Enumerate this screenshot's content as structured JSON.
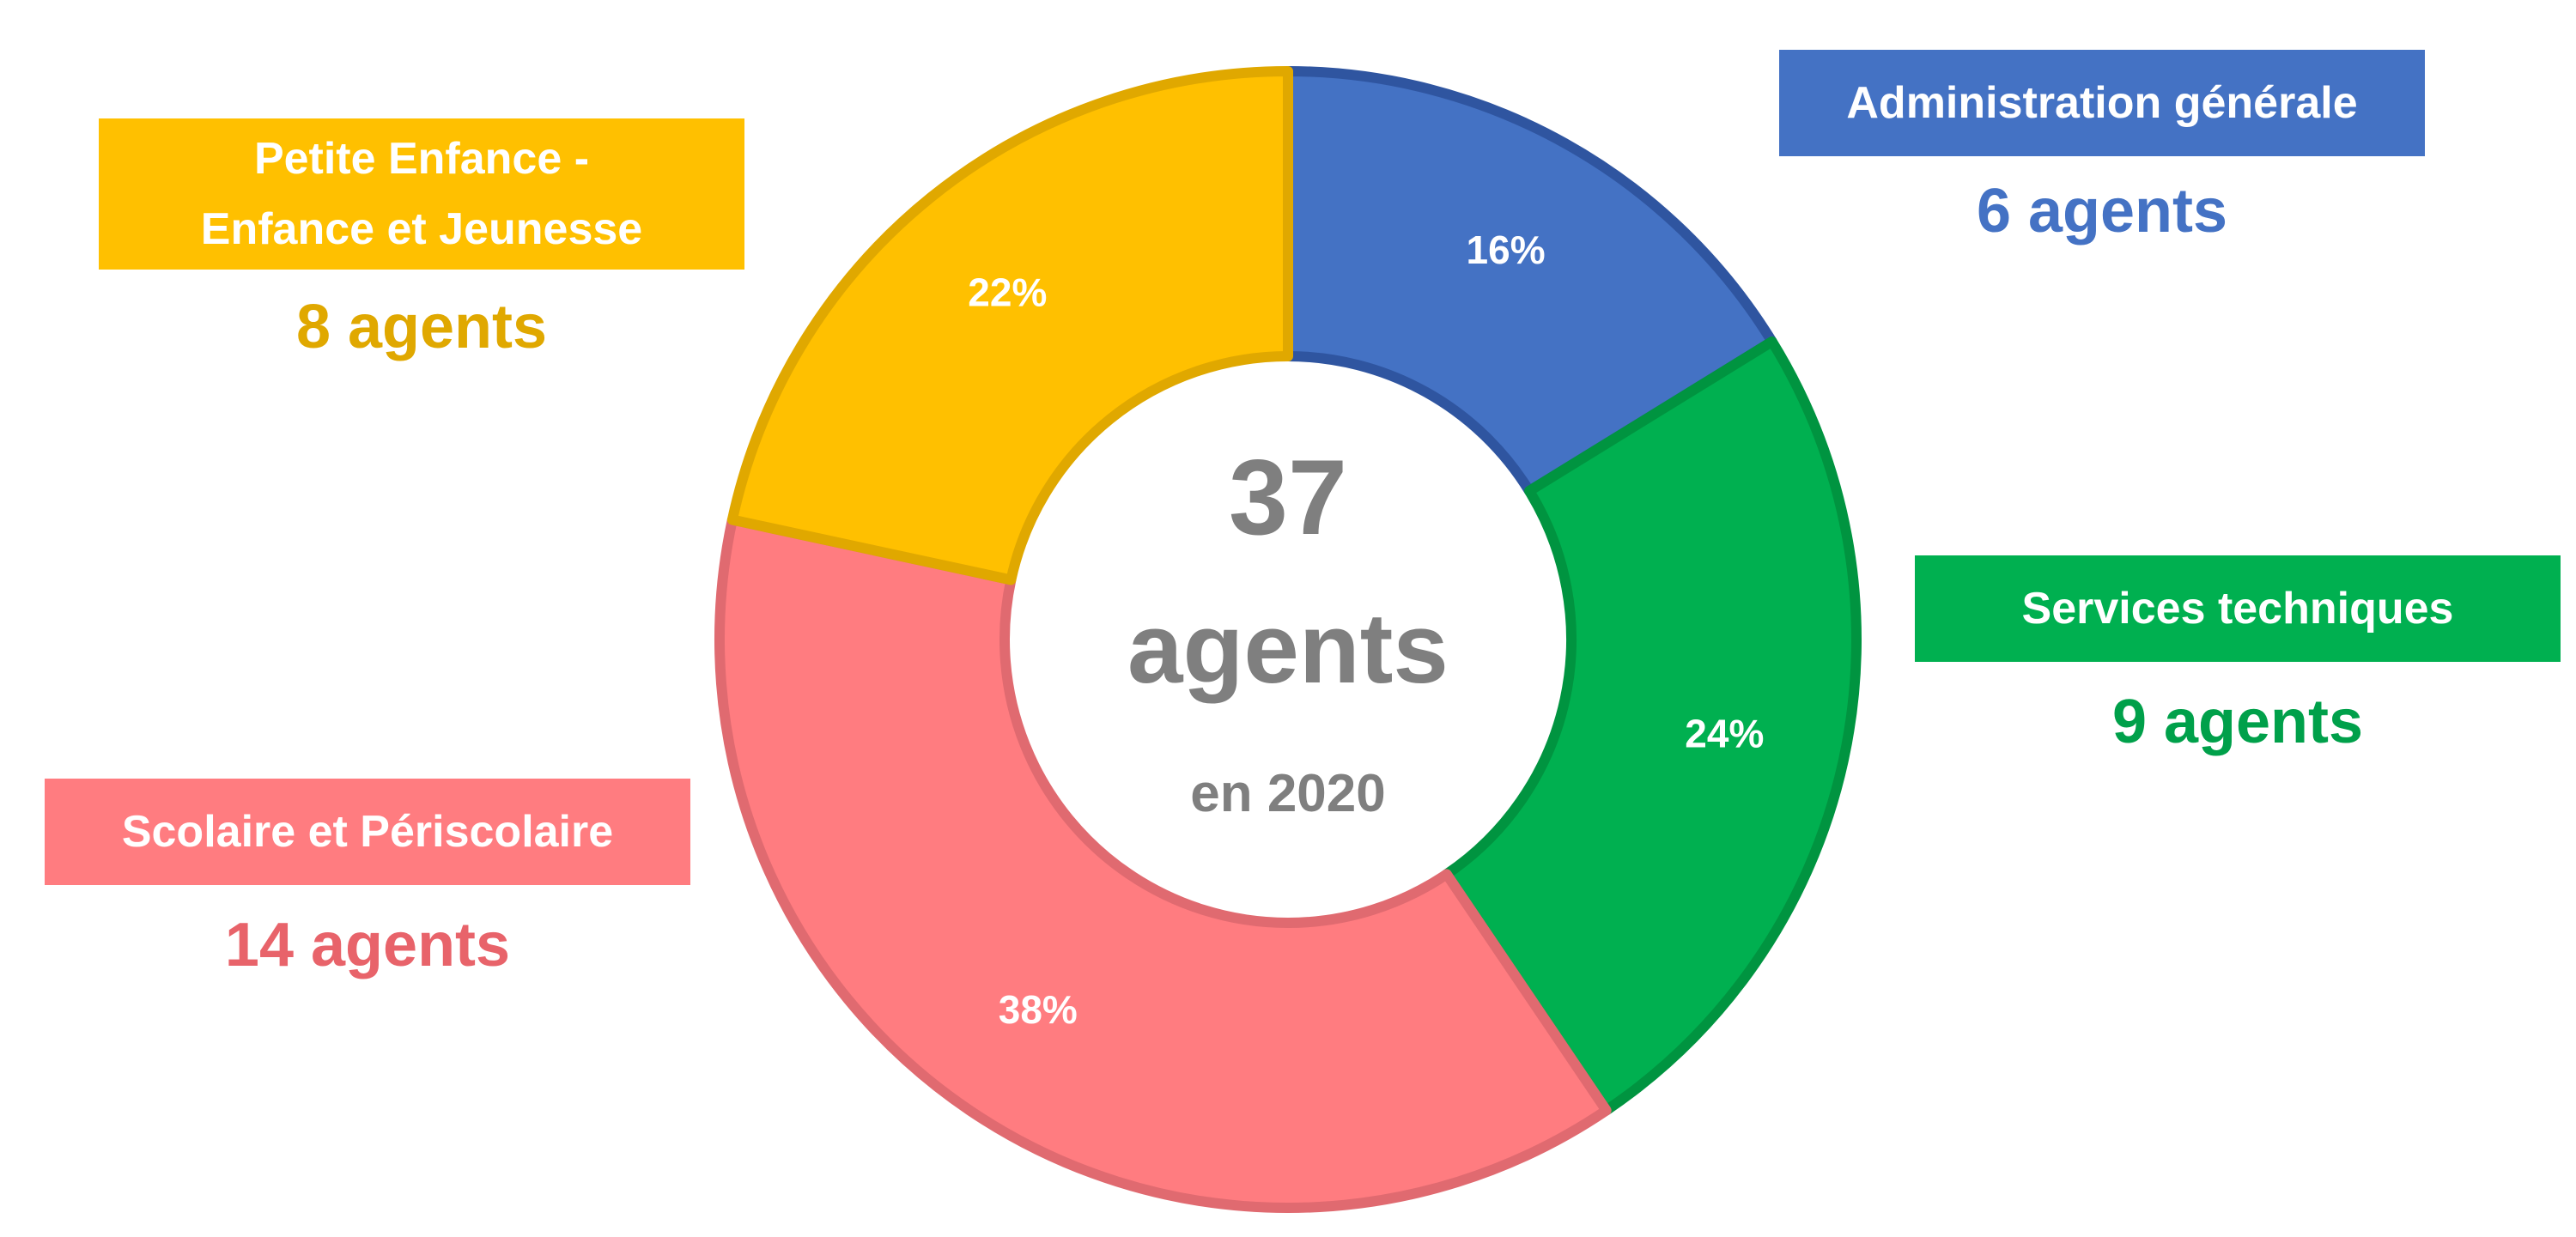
{
  "chart_data": {
    "type": "pie",
    "style": "donut",
    "center": {
      "number": "37",
      "unit": "agents",
      "year": "en 2020"
    },
    "series": [
      {
        "category": "Administration générale",
        "value": 6,
        "percent": 16,
        "percent_label": "16%",
        "count_label": "6 agents",
        "color": "#4472C4",
        "stroke": "#2F55A0",
        "text_color": "#4472C4"
      },
      {
        "category": "Services techniques",
        "value": 9,
        "percent": 24,
        "percent_label": "24%",
        "count_label": "9 agents",
        "color": "#00B050",
        "stroke": "#009440",
        "text_color": "#00A04A"
      },
      {
        "category": "Scolaire et Périscolaire",
        "value": 14,
        "percent": 38,
        "percent_label": "38%",
        "count_label": "14 agents",
        "color": "#FF7C80",
        "stroke": "#E06A70",
        "text_color": "#E8636A"
      },
      {
        "category": "Petite Enfance - Enfance et Jeunesse",
        "category_lines": [
          "Petite Enfance -",
          "Enfance et Jeunesse"
        ],
        "value": 8,
        "percent": 22,
        "percent_label": "22%",
        "count_label": "8 agents",
        "color": "#FFC000",
        "stroke": "#E0A800",
        "text_color": "#E0A800"
      }
    ]
  }
}
